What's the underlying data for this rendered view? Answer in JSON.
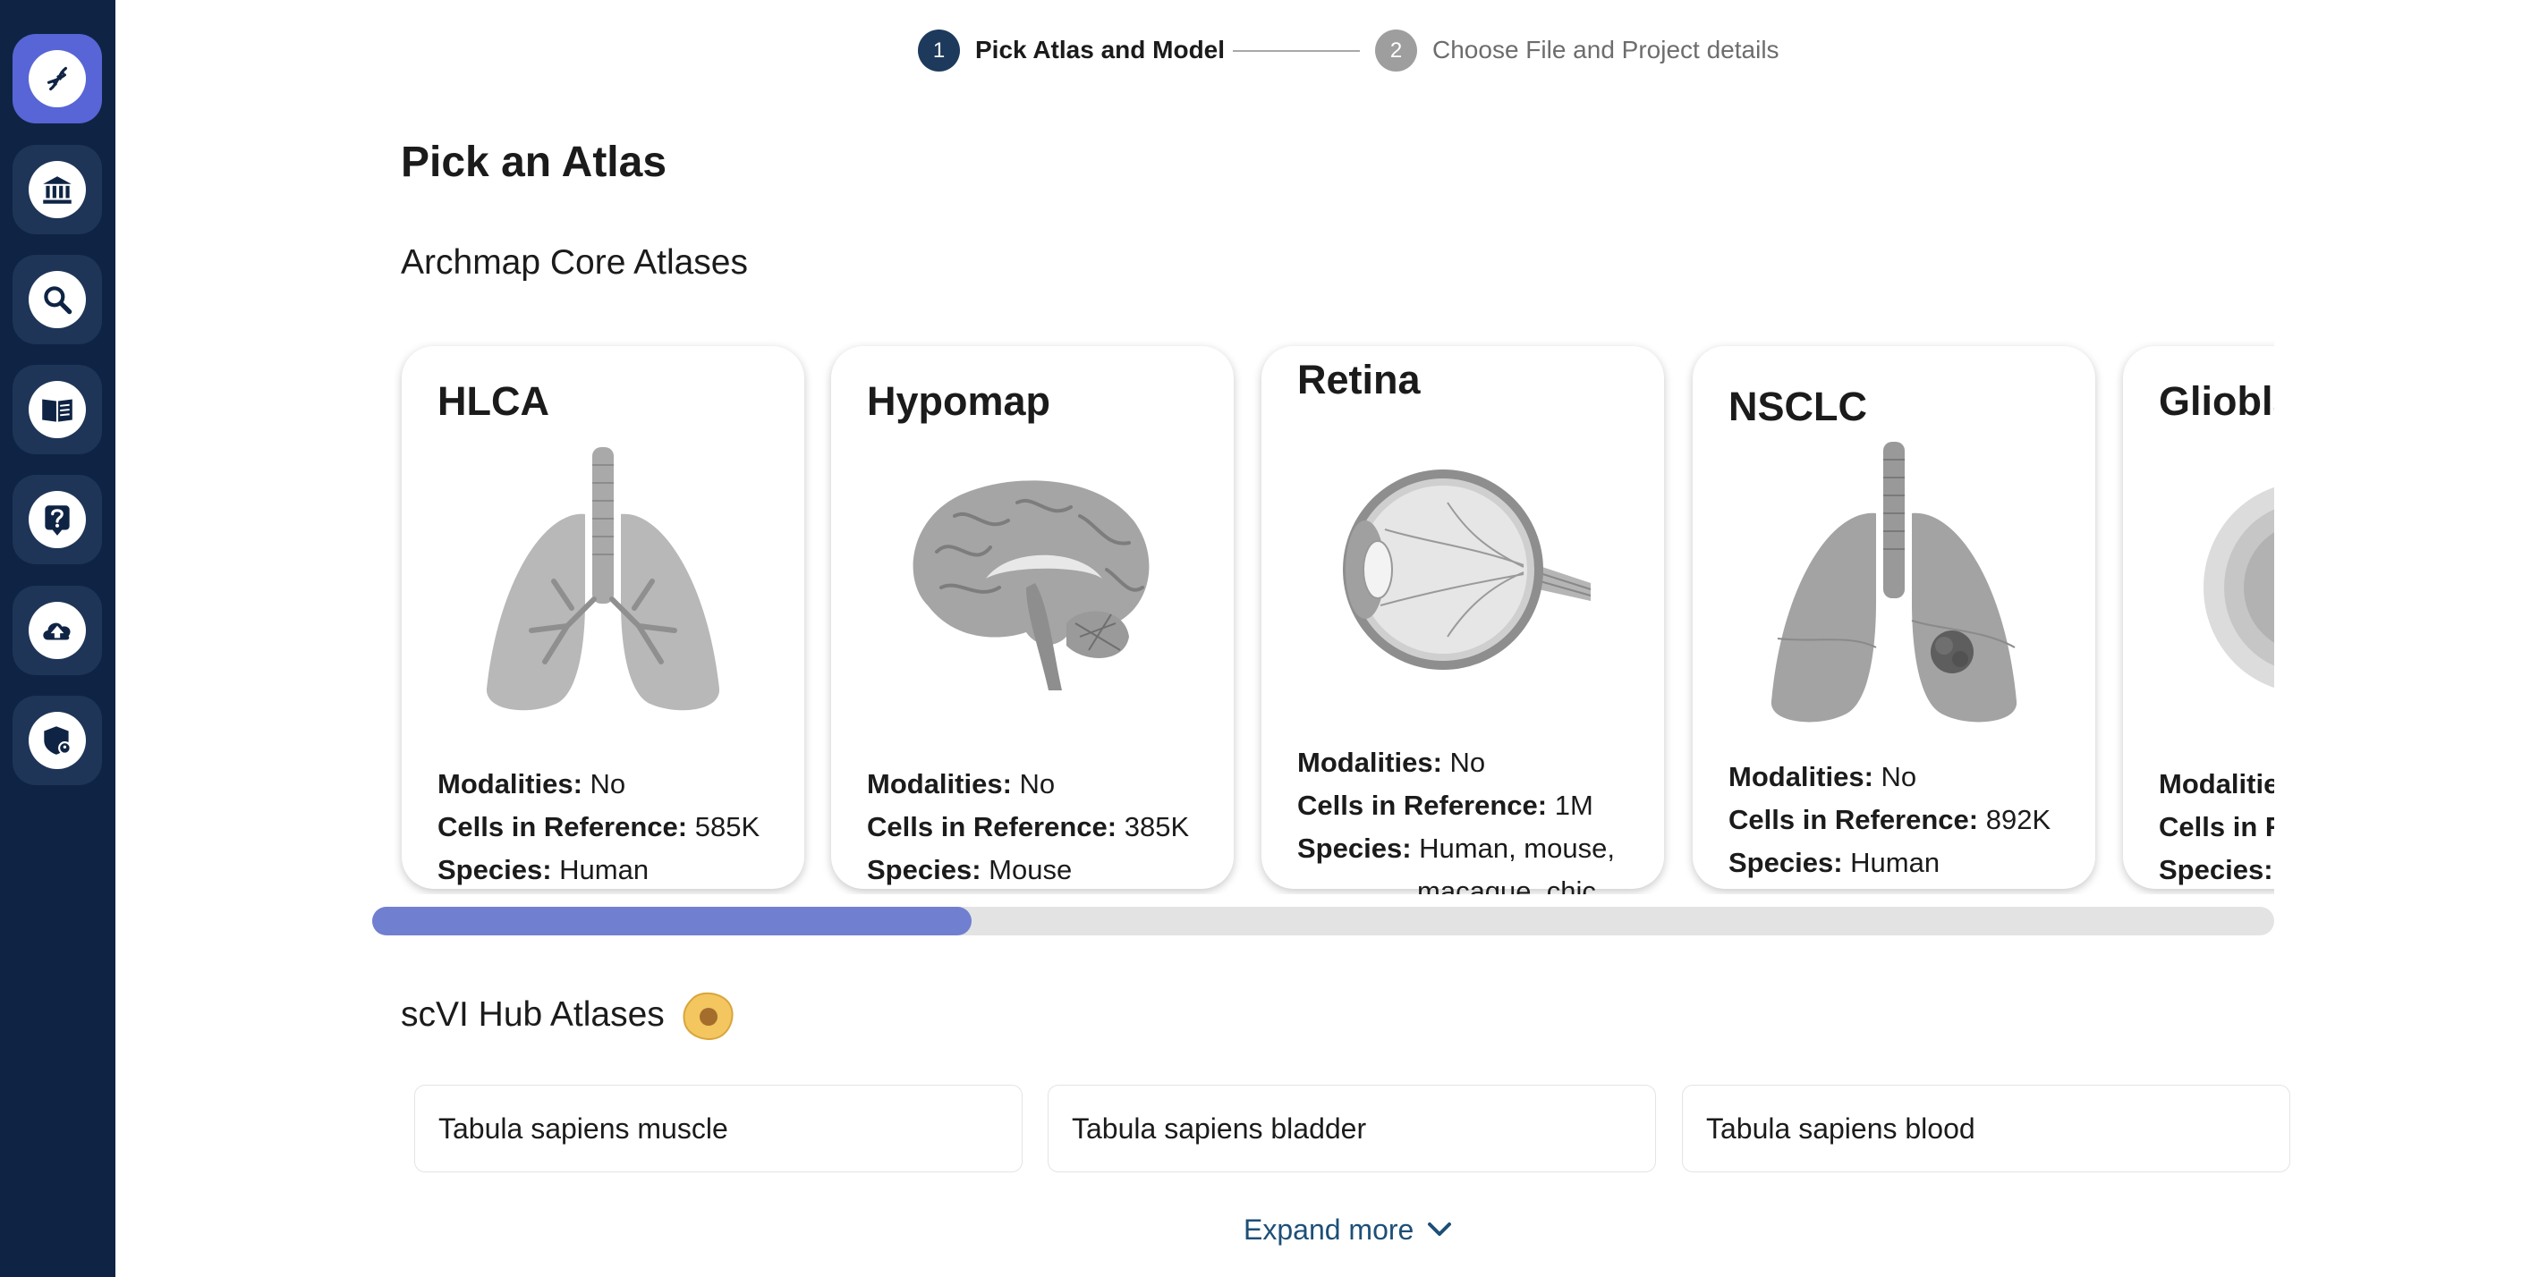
{
  "stepper": {
    "steps": [
      {
        "number": "1",
        "label": "Pick Atlas and Model"
      },
      {
        "number": "2",
        "label": "Choose File and Project details"
      }
    ]
  },
  "page": {
    "title": "Pick an Atlas",
    "core_section": "Archmap Core Atlases",
    "hub_section": "scVI Hub Atlases"
  },
  "atlases": [
    {
      "name": "HLCA",
      "modalities_label": "Modalities:",
      "modalities": "No",
      "cells_label": "Cells in Reference:",
      "cells": "585K",
      "species_label": "Species:",
      "species": "Human"
    },
    {
      "name": "Hypomap",
      "modalities_label": "Modalities:",
      "modalities": "No",
      "cells_label": "Cells in Reference:",
      "cells": "385K",
      "species_label": "Species:",
      "species": "Mouse"
    },
    {
      "name": "Retina",
      "modalities_label": "Modalities:",
      "modalities": "No",
      "cells_label": "Cells in Reference:",
      "cells": "1M",
      "species_label": "Species:",
      "species": "Human, mouse,",
      "species_cont": "macaque, chic."
    },
    {
      "name": "NSCLC",
      "modalities_label": "Modalities:",
      "modalities": "No",
      "cells_label": "Cells in Reference:",
      "cells": "892K",
      "species_label": "Species:",
      "species": "Human"
    },
    {
      "name": "Glioblastoma",
      "modalities_label": "Modalities:",
      "cells_label": "Cells in Reference:",
      "species_label": "Species:"
    }
  ],
  "carousel": {
    "scroll_fraction": 0.315
  },
  "hub_atlases": [
    "Tabula sapiens muscle",
    "Tabula sapiens bladder",
    "Tabula sapiens blood"
  ],
  "expand_label": "Expand more",
  "sidebar": {
    "items": [
      {
        "icon": "dna-icon",
        "active": true
      },
      {
        "icon": "institution-icon"
      },
      {
        "icon": "search-icon"
      },
      {
        "icon": "book-icon"
      },
      {
        "icon": "help-icon"
      },
      {
        "icon": "cloud-upload-icon"
      },
      {
        "icon": "shield-icon"
      }
    ]
  },
  "colors": {
    "sidebar": "#0f2444",
    "accent": "#5865d6",
    "step_active": "#1d3a5c",
    "step_inactive": "#9e9e9e",
    "scroll_thumb": "#717fd0"
  }
}
